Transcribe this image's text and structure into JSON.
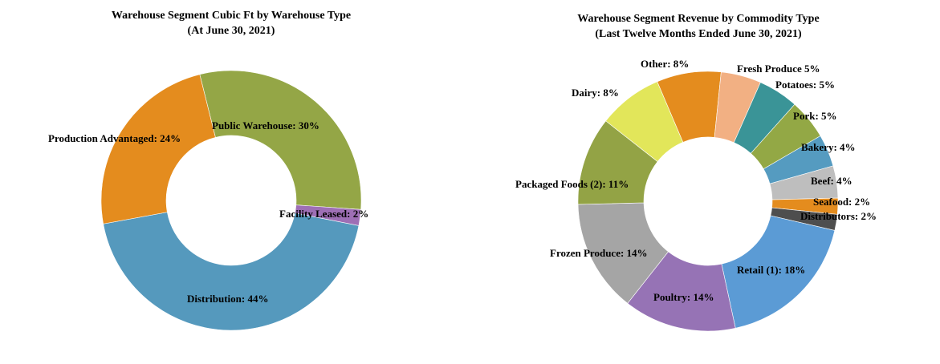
{
  "chart_data": [
    {
      "type": "pie",
      "donut": true,
      "title": [
        "Warehouse Segment Cubic  Ft by Warehouse Type",
        "(At June 30, 2021)"
      ],
      "unit": "%",
      "slices": [
        {
          "label": "Public Warehouse",
          "value": 30,
          "color": "#94A646",
          "text": "Public Warehouse: 30%"
        },
        {
          "label": "Facility Leased",
          "value": 2,
          "color": "#9E6FB5",
          "text": "Facility Leased: 2%"
        },
        {
          "label": "Distribution",
          "value": 44,
          "color": "#5599BD",
          "text": "Distribution: 44%"
        },
        {
          "label": "Production Advantaged",
          "value": 24,
          "color": "#E48C1E",
          "text": "Production Advantaged: 24%"
        }
      ]
    },
    {
      "type": "pie",
      "donut": true,
      "title": [
        "Warehouse Segment Revenue by Commodity  Type",
        "(Last Twelve Months Ended  June 30, 2021)"
      ],
      "unit": "%",
      "slices": [
        {
          "label": "Other",
          "value": 8,
          "color": "#E48C1E",
          "text": "Other: 8%"
        },
        {
          "label": "Fresh Produce",
          "value": 5,
          "color": "#F2B083",
          "text": "Fresh Produce 5%"
        },
        {
          "label": "Potatoes",
          "value": 5,
          "color": "#3A9497",
          "text": "Potatoes: 5%"
        },
        {
          "label": "Pork",
          "value": 5,
          "color": "#93A845",
          "text": "Pork: 5%"
        },
        {
          "label": "Bakery",
          "value": 4,
          "color": "#559BC0",
          "text": "Bakery: 4%"
        },
        {
          "label": "Beef",
          "value": 4,
          "color": "#BEBEBE",
          "text": "Beef: 4%"
        },
        {
          "label": "Seafood",
          "value": 2,
          "color": "#E48C1E",
          "text": "Seafood: 2%"
        },
        {
          "label": "Distributors",
          "value": 2,
          "color": "#4E4E4E",
          "text": "Distributors: 2%"
        },
        {
          "label": "Retail (1)",
          "value": 18,
          "color": "#5B9BD5",
          "text": "Retail (1): 18%"
        },
        {
          "label": "Poultry",
          "value": 14,
          "color": "#9673B5",
          "text": "Poultry: 14%"
        },
        {
          "label": "Frozen Produce",
          "value": 14,
          "color": "#A5A5A5",
          "text": "Frozen Produce: 14%"
        },
        {
          "label": "Packaged Foods (2)",
          "value": 11,
          "color": "#93A345",
          "text": "Packaged Foods (2): 11%"
        },
        {
          "label": "Dairy",
          "value": 8,
          "color": "#E2E65A",
          "text": "Dairy: 8%"
        }
      ]
    }
  ]
}
